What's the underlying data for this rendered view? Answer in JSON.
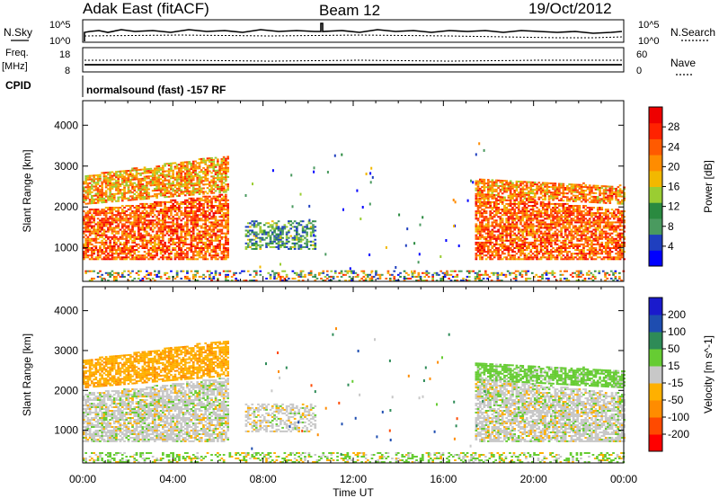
{
  "header": {
    "title": "Adak East (fitACF)",
    "beam": "Beam 12",
    "date": "19/Oct/2012"
  },
  "strip_labels": {
    "nsky": "N.Sky",
    "nsky_ticks": [
      "10^5",
      "10^0"
    ],
    "nsearch": "N.Search",
    "freq": "Freq.",
    "freq_unit": "[MHz]",
    "freq_ticks": [
      "18",
      "8"
    ],
    "nave": "Nave",
    "nave_ticks": [
      "60",
      "0"
    ],
    "cpid": "CPID",
    "cpid_text": "normalsound (fast) -157 RF"
  },
  "colors": {
    "power": [
      "#0000ff",
      "#1f3fbf",
      "#4a9a5f",
      "#2a8a40",
      "#9acd32",
      "#f2b800",
      "#ff8c00",
      "#ff5a00",
      "#ff2200",
      "#ee0000"
    ],
    "velocity": [
      "#ff0000",
      "#ff4a00",
      "#ff8c00",
      "#ffb000",
      "#c8c8c8",
      "#66cc33",
      "#2e8b57",
      "#1e4db0",
      "#1a1acc"
    ],
    "ground_scatter": "#c8c8c8"
  },
  "chart_data": [
    {
      "type": "heatmap",
      "title": "",
      "xlabel": "Time UT",
      "ylabel": "Slant Range [km]",
      "xlim": [
        0,
        24
      ],
      "ylim": [
        180,
        4600
      ],
      "x_ticks": [
        "00:00",
        "04:00",
        "08:00",
        "12:00",
        "16:00",
        "20:00",
        "00:00"
      ],
      "y_ticks": [
        1000,
        2000,
        3000,
        4000
      ],
      "colorbar": {
        "label": "Power [dB]",
        "ticks": [
          4,
          8,
          12,
          16,
          20,
          24,
          28
        ]
      },
      "regions": [
        {
          "name": "evening_E",
          "t": [
            0.0,
            6.4
          ],
          "r_lo": 700,
          "r_hi": 1900,
          "value": 24
        },
        {
          "name": "evening_F",
          "t": [
            0.0,
            6.4
          ],
          "r_lo": 2050,
          "r_hi": 2750,
          "value": 20
        },
        {
          "name": "midday_patch",
          "t": [
            7.2,
            10.3
          ],
          "r_lo": 950,
          "r_hi": 1650,
          "value": 10
        },
        {
          "name": "morning_E",
          "t": [
            17.4,
            24.0
          ],
          "r_lo": 700,
          "r_hi": 1900,
          "value": 24
        },
        {
          "name": "morning_F",
          "t": [
            17.4,
            24.0
          ],
          "r_lo": 2050,
          "r_hi": 2700,
          "value": 22
        },
        {
          "name": "near_range",
          "t": [
            0.0,
            24.0
          ],
          "r_lo": 180,
          "r_hi": 420,
          "value": 8
        }
      ]
    },
    {
      "type": "heatmap",
      "title": "",
      "xlabel": "Time UT",
      "ylabel": "Slant Range [km]",
      "xlim": [
        0,
        24
      ],
      "ylim": [
        180,
        4600
      ],
      "x_ticks": [
        "00:00",
        "04:00",
        "08:00",
        "12:00",
        "16:00",
        "20:00",
        "00:00"
      ],
      "y_ticks": [
        1000,
        2000,
        3000,
        4000
      ],
      "colorbar": {
        "label": "Velocity [m s^-1]",
        "ticks": [
          -200,
          -100,
          -50,
          -15,
          15,
          50,
          100,
          200
        ]
      },
      "regions": [
        {
          "name": "evening_E",
          "t": [
            0.0,
            6.4
          ],
          "r_lo": 700,
          "r_hi": 1900,
          "value": 0
        },
        {
          "name": "evening_F",
          "t": [
            0.0,
            6.4
          ],
          "r_lo": 2050,
          "r_hi": 2750,
          "value": -40
        },
        {
          "name": "midday_patch",
          "t": [
            7.2,
            10.3
          ],
          "r_lo": 950,
          "r_hi": 1650,
          "value": 0
        },
        {
          "name": "morning_E",
          "t": [
            17.4,
            24.0
          ],
          "r_lo": 700,
          "r_hi": 1900,
          "value": 0
        },
        {
          "name": "morning_F",
          "t": [
            17.4,
            24.0
          ],
          "r_lo": 2050,
          "r_hi": 2700,
          "value": 30
        },
        {
          "name": "near_range",
          "t": [
            0.0,
            24.0
          ],
          "r_lo": 180,
          "r_hi": 420,
          "value": 30
        }
      ]
    }
  ]
}
